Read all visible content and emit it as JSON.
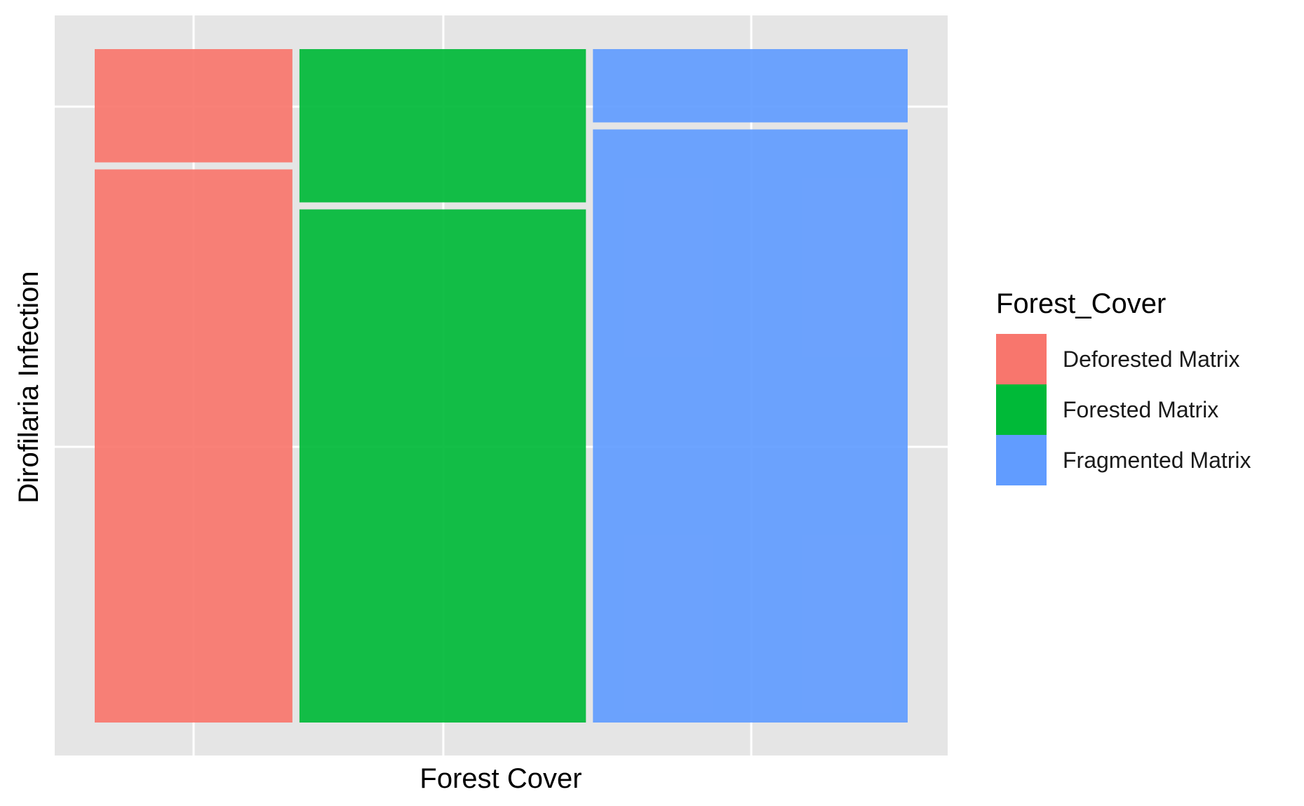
{
  "chart_data": {
    "type": "mosaic",
    "xlabel": "Forest Cover",
    "ylabel": "Dirofilaria Infection",
    "categories": [
      "Deforested Matrix",
      "Forested Matrix",
      "Fragmented Matrix"
    ],
    "column_widths": [
      0.245,
      0.355,
      0.39
    ],
    "upper_segment_fraction": [
      0.17,
      0.23,
      0.11
    ],
    "lower_segment_fraction": [
      0.83,
      0.77,
      0.89
    ],
    "grid": true,
    "legend": {
      "title": "Forest_Cover",
      "position": "right",
      "entries": [
        "Deforested Matrix",
        "Forested Matrix",
        "Fragmented Matrix"
      ]
    },
    "colors": [
      "#F8766D",
      "#00BA38",
      "#619CFF"
    ],
    "panel_background": "#E5E5E5"
  }
}
